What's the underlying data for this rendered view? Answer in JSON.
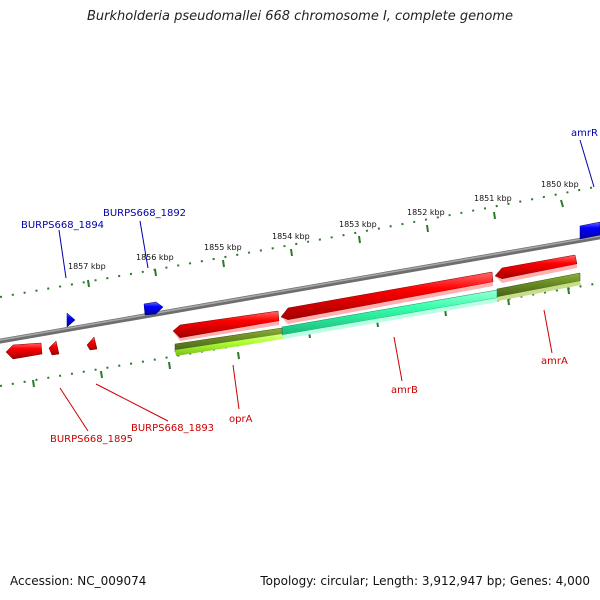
{
  "title": "Burkholderia pseudomallei 668 chromosome I, complete genome",
  "footer": {
    "accession": "Accession: NC_009074",
    "summary": "Topology: circular; Length: 3,912,947 bp; Genes: 4,000"
  },
  "scale": {
    "unit": "kbp",
    "ticks": [
      {
        "label": "1850 kbp"
      },
      {
        "label": "1851 kbp"
      },
      {
        "label": "1852 kbp"
      },
      {
        "label": "1853 kbp"
      },
      {
        "label": "1854 kbp"
      },
      {
        "label": "1855 kbp"
      },
      {
        "label": "1856 kbp"
      },
      {
        "label": "1857 kbp"
      }
    ]
  },
  "genes": {
    "forward": [
      {
        "name": "amrR",
        "color": "#0000ff"
      },
      {
        "name": "BURPS668_1892",
        "color": "#0000ff"
      },
      {
        "name": "BURPS668_1894",
        "color": "#0000ff"
      }
    ],
    "reverse": [
      {
        "name": "amrA",
        "color": "#ff0000"
      },
      {
        "name": "amrB",
        "color": "#ff0000"
      },
      {
        "name": "oprA",
        "color": "#ff0000"
      },
      {
        "name": "BURPS668_1893",
        "color": "#ff0000"
      },
      {
        "name": "BURPS668_1895",
        "color": "#ff0000"
      }
    ]
  },
  "colors": {
    "backbone": "#808080",
    "ruler": "#2a7a2a",
    "forward_label": "#0000aa",
    "reverse_label": "#cc0000",
    "cds_amrA": "#6b8e23",
    "cds_amrB": "#33ffaa",
    "cds_oprA": "#adff2f"
  }
}
